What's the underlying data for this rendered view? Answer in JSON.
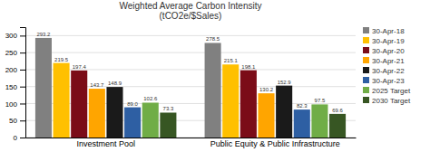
{
  "chart_data": {
    "type": "bar",
    "title": "Weighted Average Carbon Intensity\n(tCO2e/$Sales)",
    "categories": [
      "Investment Pool",
      "Public Equity & Public Infrastructure"
    ],
    "series": [
      {
        "name": "30-Apr-18",
        "color": "#808080",
        "values": [
          293.2,
          278.5
        ]
      },
      {
        "name": "30-Apr-19",
        "color": "#ffc000",
        "values": [
          219.5,
          215.1
        ]
      },
      {
        "name": "30-Apr-20",
        "color": "#7b0c18",
        "values": [
          197.4,
          198.1
        ]
      },
      {
        "name": "30-Apr-21",
        "color": "#ffa500",
        "values": [
          143.7,
          130.2
        ]
      },
      {
        "name": "30-Apr-22",
        "color": "#1a1a1a",
        "values": [
          148.9,
          152.9
        ]
      },
      {
        "name": "30-Apr-23",
        "color": "#2e5fa3",
        "values": [
          89.0,
          82.3
        ],
        "value_labels": [
          "89.0",
          "82.3"
        ]
      },
      {
        "name": "2025 Target",
        "color": "#70ad47",
        "values": [
          102.6,
          97.5
        ]
      },
      {
        "name": "2030 Target",
        "color": "#375623",
        "values": [
          73.3,
          69.6
        ]
      }
    ],
    "ylim": [
      0,
      325
    ],
    "yticks": [
      0,
      50,
      100,
      150,
      200,
      250,
      300
    ],
    "grid": true,
    "legend": "upper right",
    "data_labels": true
  }
}
